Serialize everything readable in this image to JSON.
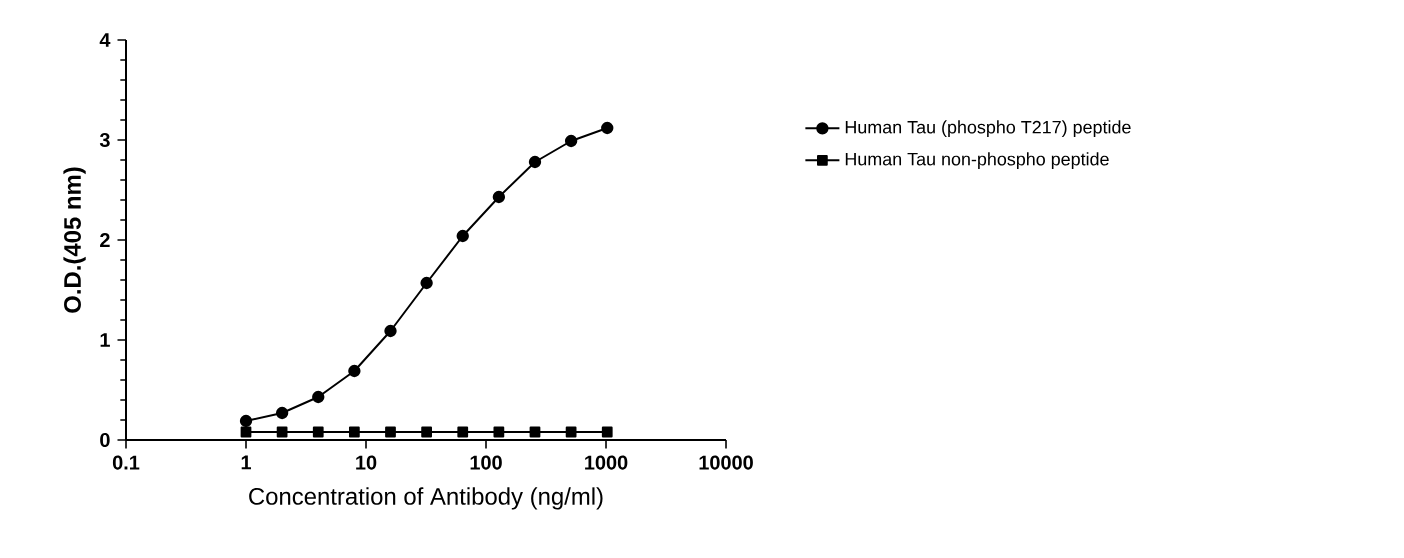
{
  "chart_data": {
    "type": "line",
    "xlabel": "Concentration of Antibody (ng/ml)",
    "ylabel": "O.D.(405 nm)",
    "x": [
      1,
      2,
      4,
      8,
      16,
      32,
      64,
      128,
      256,
      512,
      1024
    ],
    "series": [
      {
        "name": "Human Tau (phospho T217) peptide",
        "color": "#000000",
        "marker": "circle",
        "values": [
          0.19,
          0.27,
          0.43,
          0.69,
          1.09,
          1.57,
          2.04,
          2.43,
          2.78,
          2.99,
          3.12
        ]
      },
      {
        "name": "Human Tau non-phospho peptide",
        "color": "#000000",
        "marker": "square",
        "values": [
          0.08,
          0.08,
          0.08,
          0.08,
          0.08,
          0.08,
          0.08,
          0.08,
          0.08,
          0.08,
          0.08
        ]
      }
    ],
    "log": "x",
    "xlim": [
      0.1,
      10000
    ],
    "xticks": [
      0.1,
      1,
      10,
      100,
      1000,
      10000
    ],
    "ylim": [
      0,
      4
    ],
    "yticks": [
      0,
      1,
      2,
      3,
      4
    ],
    "grid": false,
    "legend": "right",
    "line_style": "solid"
  }
}
